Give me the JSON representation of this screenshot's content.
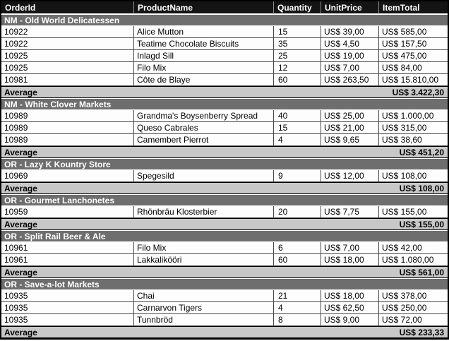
{
  "report": {
    "columns": [
      "OrderId",
      "ProductName",
      "Quantity",
      "UnitPrice",
      "ItemTotal"
    ],
    "average_label": "Average",
    "groups": [
      {
        "name": "NM - Old World Delicatessen",
        "rows": [
          {
            "order_id": "10922",
            "product": "Alice Mutton",
            "quantity": "15",
            "unit_price": "US$ 39,00",
            "item_total": "US$ 585,00"
          },
          {
            "order_id": "10922",
            "product": "Teatime Chocolate Biscuits",
            "quantity": "35",
            "unit_price": "US$ 4,50",
            "item_total": "US$ 157,50"
          },
          {
            "order_id": "10925",
            "product": "Inlagd Sill",
            "quantity": "25",
            "unit_price": "US$ 19,00",
            "item_total": "US$ 475,00"
          },
          {
            "order_id": "10925",
            "product": "Filo Mix",
            "quantity": "12",
            "unit_price": "US$ 7,00",
            "item_total": "US$ 84,00"
          },
          {
            "order_id": "10981",
            "product": "Côte de Blaye",
            "quantity": "60",
            "unit_price": "US$ 263,50",
            "item_total": "US$ 15.810,00"
          }
        ],
        "average": "US$ 3.422,30"
      },
      {
        "name": "NM - White Clover Markets",
        "rows": [
          {
            "order_id": "10989",
            "product": "Grandma's Boysenberry Spread",
            "quantity": "40",
            "unit_price": "US$ 25,00",
            "item_total": "US$ 1.000,00"
          },
          {
            "order_id": "10989",
            "product": "Queso Cabrales",
            "quantity": "15",
            "unit_price": "US$ 21,00",
            "item_total": "US$ 315,00"
          },
          {
            "order_id": "10989",
            "product": "Camembert Pierrot",
            "quantity": "4",
            "unit_price": "US$ 9,65",
            "item_total": "US$ 38,60"
          }
        ],
        "average": "US$ 451,20"
      },
      {
        "name": "OR - Lazy K Kountry Store",
        "rows": [
          {
            "order_id": "10969",
            "product": "Spegesild",
            "quantity": "9",
            "unit_price": "US$ 12,00",
            "item_total": "US$ 108,00"
          }
        ],
        "average": "US$ 108,00"
      },
      {
        "name": "OR - Gourmet Lanchonetes",
        "rows": [
          {
            "order_id": "10959",
            "product": "Rhönbräu Klosterbier",
            "quantity": "20",
            "unit_price": "US$ 7,75",
            "item_total": "US$ 155,00"
          }
        ],
        "average": "US$ 155,00"
      },
      {
        "name": "OR - Split Rail Beer & Ale",
        "rows": [
          {
            "order_id": "10961",
            "product": "Filo Mix",
            "quantity": "6",
            "unit_price": "US$ 7,00",
            "item_total": "US$ 42,00"
          },
          {
            "order_id": "10961",
            "product": "Lakkalikööri",
            "quantity": "60",
            "unit_price": "US$ 18,00",
            "item_total": "US$ 1.080,00"
          }
        ],
        "average": "US$ 561,00"
      },
      {
        "name": "OR - Save-a-lot Markets",
        "rows": [
          {
            "order_id": "10935",
            "product": "Chai",
            "quantity": "21",
            "unit_price": "US$ 18,00",
            "item_total": "US$ 378,00"
          },
          {
            "order_id": "10935",
            "product": "Carnarvon Tigers",
            "quantity": "4",
            "unit_price": "US$ 62,50",
            "item_total": "US$ 250,00"
          },
          {
            "order_id": "10935",
            "product": "Tunnbröd",
            "quantity": "8",
            "unit_price": "US$ 9,00",
            "item_total": "US$ 72,00"
          }
        ],
        "average": "US$ 233,33"
      }
    ]
  },
  "colors": {
    "header_bg": "#141414",
    "group_bg": "#6e6e6e",
    "average_bg": "#c8c8c8",
    "data_bg": "#fdfdfd",
    "grid_line": "#4a4a4a",
    "outer_border": "#000000",
    "header_text": "#ffffff",
    "group_text": "#ffffff",
    "data_text": "#000000"
  }
}
